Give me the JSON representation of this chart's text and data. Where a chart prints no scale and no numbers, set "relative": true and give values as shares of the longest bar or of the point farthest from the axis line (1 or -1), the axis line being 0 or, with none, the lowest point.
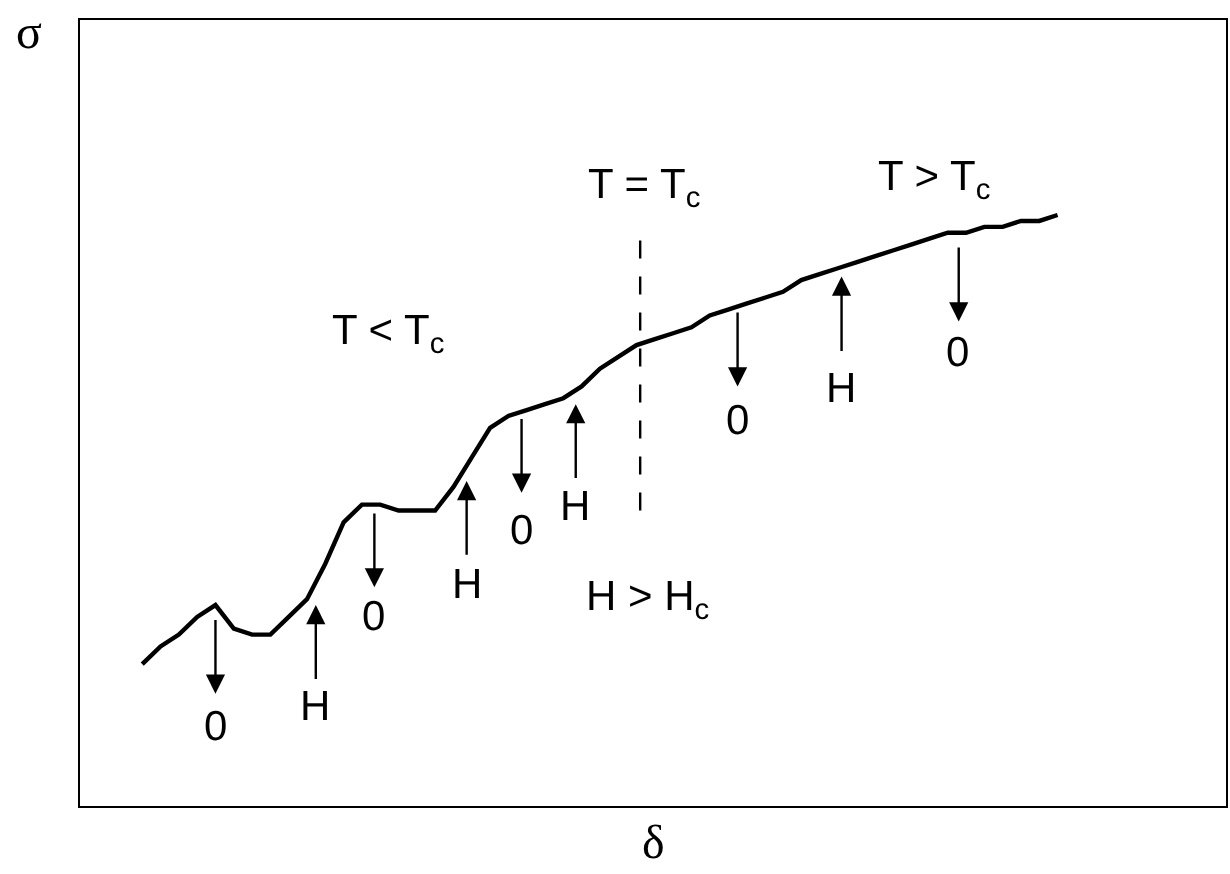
{
  "chart_data": {
    "type": "line",
    "relative": true,
    "xlabel": "δ",
    "ylabel": "σ",
    "categories": [
      null,
      null,
      null,
      null,
      null,
      null,
      null,
      null,
      null,
      null,
      null,
      null,
      null,
      null,
      null,
      null,
      null,
      null,
      null,
      null,
      null,
      null,
      null,
      null,
      null,
      null,
      null,
      null,
      null,
      null,
      null,
      null,
      null,
      null,
      null,
      null,
      null,
      null,
      null,
      null,
      null,
      null,
      null,
      null,
      null,
      null,
      null,
      null,
      null,
      null,
      null
    ],
    "series": [
      {
        "color": "#000000",
        "values": [
          0.24,
          0.27,
          0.29,
          0.32,
          0.34,
          0.3,
          0.29,
          0.29,
          0.32,
          0.35,
          0.41,
          0.48,
          0.51,
          0.51,
          0.5,
          0.5,
          0.5,
          0.54,
          0.59,
          0.64,
          0.66,
          0.67,
          0.68,
          0.69,
          0.71,
          0.74,
          0.76,
          0.78,
          0.79,
          0.8,
          0.81,
          0.83,
          0.84,
          0.85,
          0.86,
          0.87,
          0.89,
          0.9,
          0.91,
          0.92,
          0.93,
          0.94,
          0.95,
          0.96,
          0.97,
          0.97,
          0.98,
          0.98,
          0.99,
          0.99,
          1.0
        ]
      }
    ],
    "annotations": [
      "T = T$_{c}$",
      "T > T$_{c}$",
      "T < T$_{c}$",
      "H > H$_{c}$",
      "0",
      "H",
      "0",
      "H",
      "0",
      "H",
      "0",
      "H",
      "0"
    ]
  }
}
